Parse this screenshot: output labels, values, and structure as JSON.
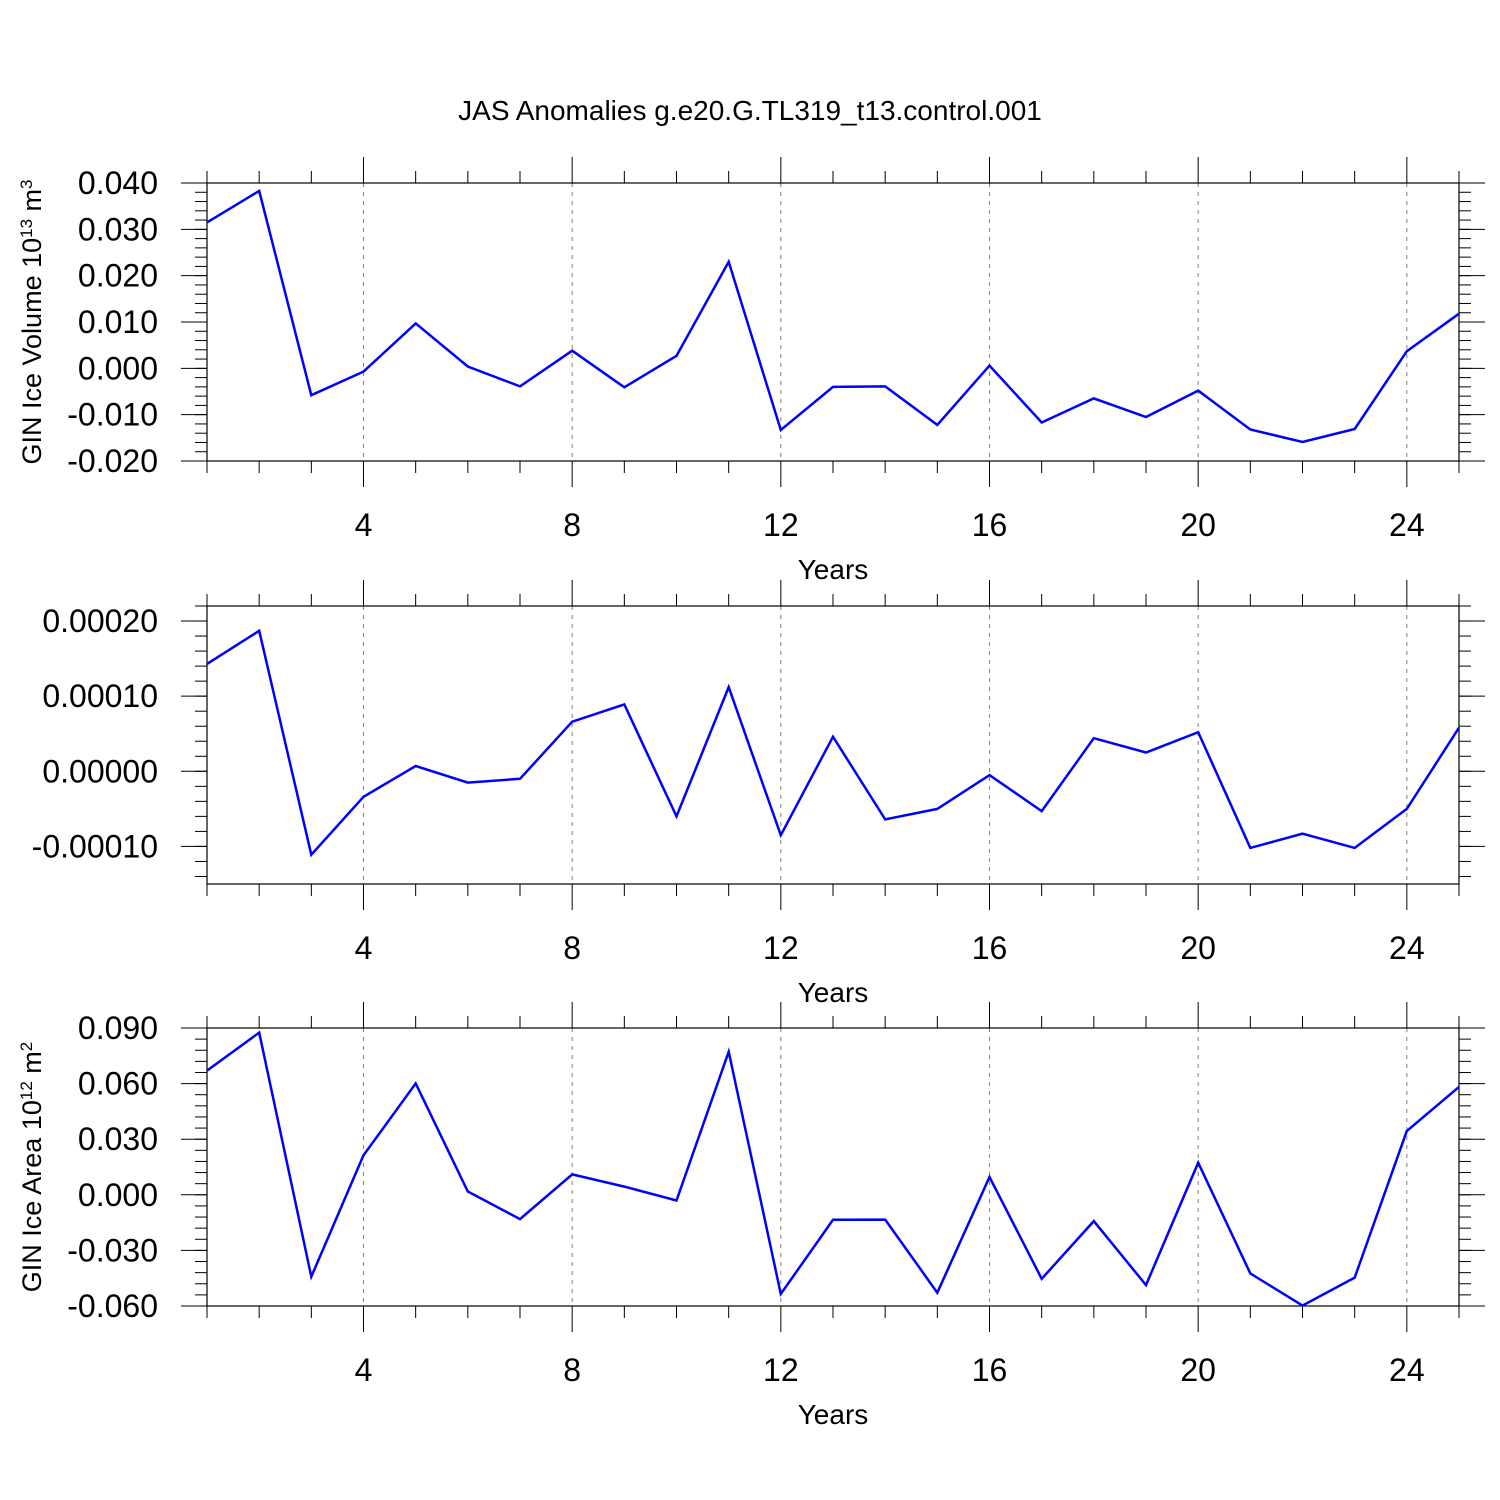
{
  "title": "JAS Anomalies g.e20.G.TL319_t13.control.001",
  "colors": {
    "line": "#0000ff",
    "axis": "#000000",
    "grid": "#808080"
  },
  "chart_data": [
    {
      "type": "line",
      "title": "",
      "ylabel": "GIN Ice Volume 10",
      "ylabel_exp": "13",
      "ylabel_unit": "m",
      "ylabel_unit_exp": "3",
      "xlabel": "Years",
      "xlim": [
        1,
        25
      ],
      "ylim": [
        -0.02,
        0.04
      ],
      "x_ticks": [
        4,
        8,
        12,
        16,
        20,
        24
      ],
      "x_tick_labels": [
        "4",
        "8",
        "12",
        "16",
        "20",
        "24"
      ],
      "y_ticks": [
        0.04,
        0.03,
        0.02,
        0.01,
        0.0,
        -0.01,
        -0.02
      ],
      "y_tick_labels": [
        "0.040",
        "0.030",
        "0.020",
        "0.010",
        "0.000",
        "-0.010",
        "-0.020"
      ],
      "grid": "x dashed",
      "series": [
        {
          "x": [
            1,
            2,
            3,
            4,
            5,
            6,
            7,
            8,
            9,
            10,
            11,
            12,
            13,
            14,
            15,
            16,
            17,
            18,
            19,
            20,
            21,
            22,
            23,
            24,
            25
          ],
          "values": [
            0.0315,
            0.0383,
            -0.0058,
            -0.0007,
            0.0097,
            0.0004,
            -0.0039,
            0.0038,
            -0.0041,
            0.0027,
            0.023,
            -0.0133,
            -0.004,
            -0.0039,
            -0.0122,
            0.0006,
            -0.0117,
            -0.0065,
            -0.0105,
            -0.0048,
            -0.0132,
            -0.0159,
            -0.0131,
            0.0037,
            0.0118
          ]
        }
      ]
    },
    {
      "type": "line",
      "title": "",
      "ylabel": "",
      "ylabel_exp": "",
      "ylabel_unit": "",
      "ylabel_unit_exp": "",
      "xlabel": "Years",
      "xlim": [
        1,
        25
      ],
      "ylim": [
        -0.00015,
        0.00022
      ],
      "x_ticks": [
        4,
        8,
        12,
        16,
        20,
        24
      ],
      "x_tick_labels": [
        "4",
        "8",
        "12",
        "16",
        "20",
        "24"
      ],
      "y_ticks": [
        0.0002,
        0.0001,
        0.0,
        -0.0001
      ],
      "y_tick_labels": [
        "0.00020",
        "0.00010",
        "0.00000",
        "-0.00010"
      ],
      "grid": "x dashed",
      "series": [
        {
          "x": [
            1,
            2,
            3,
            4,
            5,
            6,
            7,
            8,
            9,
            10,
            11,
            12,
            13,
            14,
            15,
            16,
            17,
            18,
            19,
            20,
            21,
            22,
            23,
            24,
            25
          ],
          "values": [
            0.000143,
            0.000187,
            -0.000111,
            -3.4e-05,
            7e-06,
            -1.5e-05,
            -1e-05,
            6.6e-05,
            8.9e-05,
            -6e-05,
            0.000112,
            -8.5e-05,
            4.6e-05,
            -6.4e-05,
            -5e-05,
            -5e-06,
            -5.3e-05,
            4.4e-05,
            2.5e-05,
            5.2e-05,
            -0.000102,
            -8.3e-05,
            -0.000102,
            -5e-05,
            5.8e-05
          ]
        }
      ]
    },
    {
      "type": "line",
      "title": "",
      "ylabel": "GIN Ice Area 10",
      "ylabel_exp": "12",
      "ylabel_unit": "m",
      "ylabel_unit_exp": "2",
      "xlabel": "Years",
      "xlim": [
        1,
        25
      ],
      "ylim": [
        -0.06,
        0.09
      ],
      "x_ticks": [
        4,
        8,
        12,
        16,
        20,
        24
      ],
      "x_tick_labels": [
        "4",
        "8",
        "12",
        "16",
        "20",
        "24"
      ],
      "y_ticks": [
        0.09,
        0.06,
        0.03,
        0.0,
        -0.03,
        -0.06
      ],
      "y_tick_labels": [
        "0.090",
        "0.060",
        "0.030",
        "0.000",
        "-0.030",
        "-0.060"
      ],
      "grid": "x dashed",
      "series": [
        {
          "x": [
            1,
            2,
            3,
            4,
            5,
            6,
            7,
            8,
            9,
            10,
            11,
            12,
            13,
            14,
            15,
            16,
            17,
            18,
            19,
            20,
            21,
            22,
            23,
            24,
            25
          ],
          "values": [
            0.067,
            0.0875,
            -0.0442,
            0.0213,
            0.0601,
            0.0018,
            -0.0131,
            0.011,
            0.0044,
            -0.0031,
            0.0772,
            -0.0535,
            -0.0135,
            -0.0134,
            -0.0528,
            0.0096,
            -0.0453,
            -0.0142,
            -0.0487,
            0.0173,
            -0.0424,
            -0.0598,
            -0.0447,
            0.0344,
            0.0582
          ]
        }
      ]
    }
  ]
}
